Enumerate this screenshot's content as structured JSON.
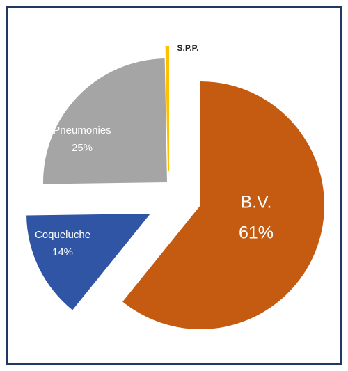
{
  "chart_data": {
    "type": "pie",
    "categories": [
      "B.V.",
      "Coqueluche",
      "Pneumonies",
      "S.P.P."
    ],
    "values": [
      61,
      14,
      25,
      0.3
    ],
    "value_labels": [
      "61%",
      "14%",
      "25%",
      null
    ],
    "colors": [
      "#c55a11",
      "#2f55a4",
      "#a5a5a5",
      "#ffc000"
    ]
  }
}
